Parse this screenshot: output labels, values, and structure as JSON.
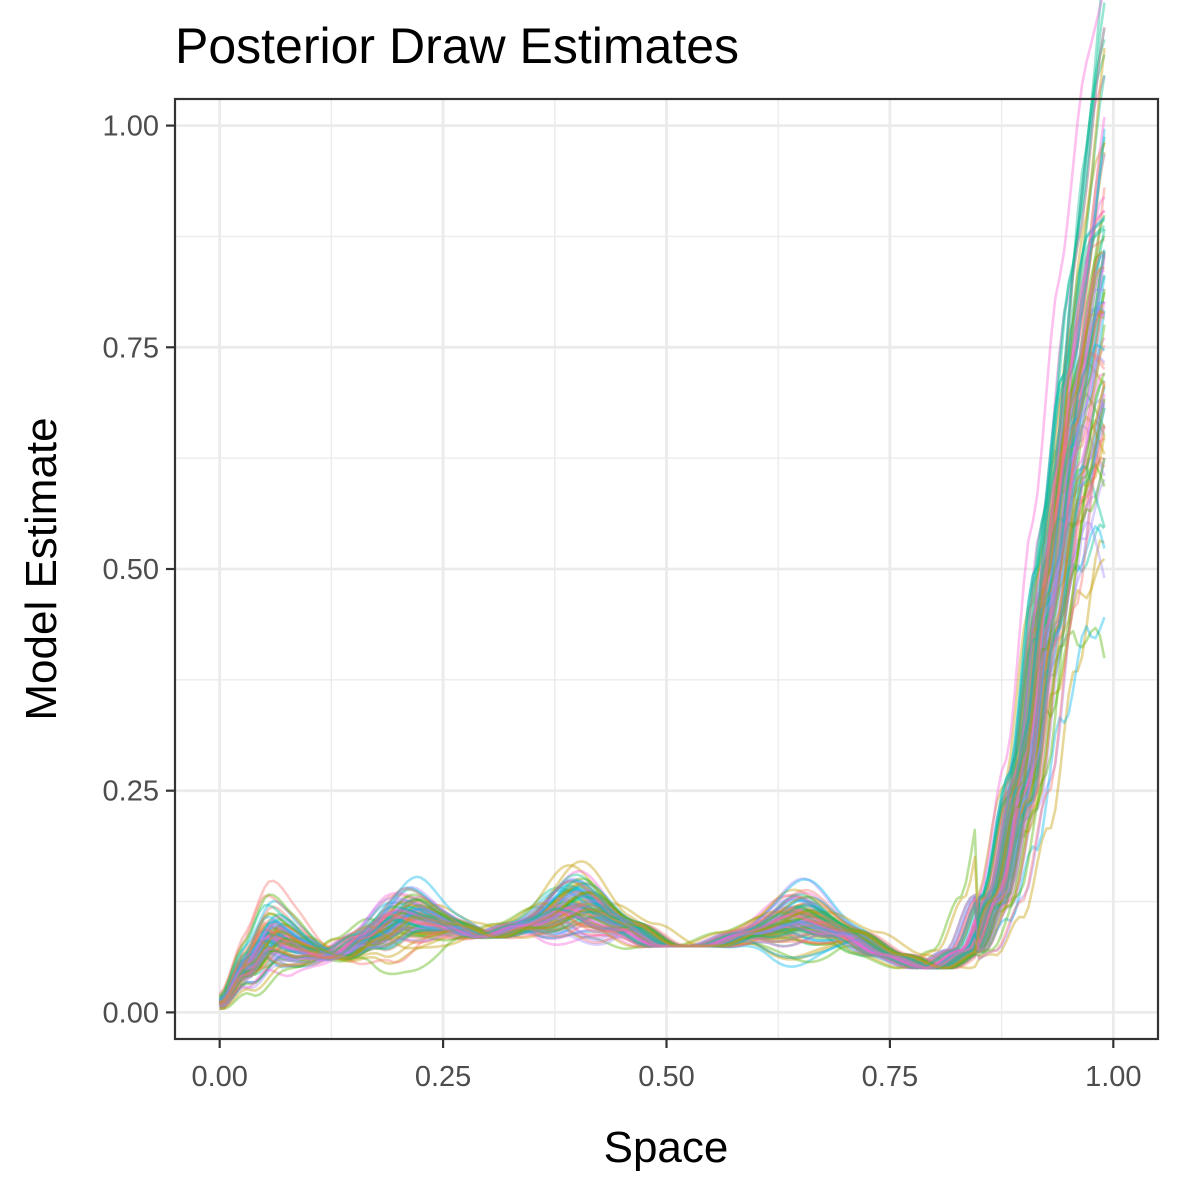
{
  "chart_data": {
    "type": "line",
    "title": "Posterior Draw Estimates",
    "xlabel": "Space",
    "ylabel": "Model Estimate",
    "xlim": [
      -0.05,
      1.05
    ],
    "ylim": [
      -0.03,
      1.03
    ],
    "x_ticks": [
      "0.00",
      "0.25",
      "0.50",
      "0.75",
      "1.00"
    ],
    "y_ticks": [
      "0.00",
      "0.25",
      "0.50",
      "0.75",
      "1.00"
    ],
    "grid": true,
    "theme": "bw",
    "series_count": 100,
    "series_opacity": 0.4,
    "palette": [
      "#F8766D",
      "#C49A00",
      "#53B400",
      "#00C094",
      "#00B6EB",
      "#A58AFF",
      "#FB61D7"
    ],
    "mean_curve": {
      "x": [
        0.0,
        0.03,
        0.06,
        0.09,
        0.13,
        0.17,
        0.21,
        0.25,
        0.3,
        0.35,
        0.4,
        0.45,
        0.5,
        0.55,
        0.6,
        0.65,
        0.7,
        0.75,
        0.8,
        0.84,
        0.87,
        0.9,
        0.93,
        0.96,
        0.99
      ],
      "y": [
        0.01,
        0.05,
        0.085,
        0.072,
        0.062,
        0.085,
        0.11,
        0.1,
        0.085,
        0.1,
        0.125,
        0.1,
        0.075,
        0.075,
        0.09,
        0.105,
        0.09,
        0.065,
        0.05,
        0.07,
        0.13,
        0.26,
        0.48,
        0.68,
        0.82
      ]
    },
    "envelope": {
      "x": [
        0.0,
        0.06,
        0.13,
        0.21,
        0.3,
        0.4,
        0.5,
        0.65,
        0.8,
        0.9,
        0.99
      ],
      "y_min": [
        0.005,
        0.065,
        0.05,
        0.09,
        0.06,
        0.09,
        0.05,
        0.07,
        0.03,
        0.1,
        0.2
      ],
      "y_max": [
        0.015,
        0.125,
        0.075,
        0.14,
        0.12,
        0.175,
        0.1,
        0.178,
        0.11,
        0.45,
        0.975
      ]
    }
  }
}
